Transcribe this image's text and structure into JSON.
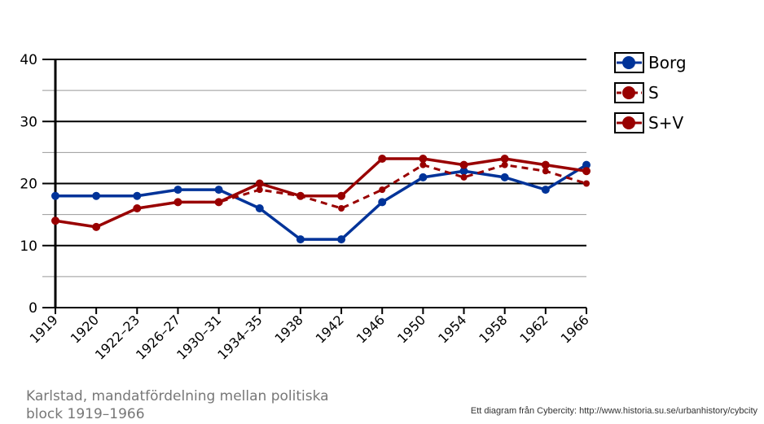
{
  "chart_data": {
    "type": "line",
    "title": "",
    "xlabel": "",
    "ylabel": "",
    "ylim": [
      0,
      40
    ],
    "yticks": [
      0,
      10,
      20,
      30,
      40
    ],
    "grid": true,
    "legend_position": "right",
    "categories": [
      "1919",
      "1920",
      "1922–23",
      "1926–27",
      "1930–31",
      "1934–35",
      "1938",
      "1942",
      "1946",
      "1950",
      "1954",
      "1958",
      "1962",
      "1966"
    ],
    "series": [
      {
        "name": "Borg",
        "color": "#003399",
        "dashed": false,
        "values": [
          18,
          18,
          18,
          19,
          19,
          16,
          11,
          11,
          17,
          21,
          22,
          21,
          19,
          23
        ]
      },
      {
        "name": "S",
        "color": "#990000",
        "dashed": true,
        "values": [
          14,
          13,
          16,
          17,
          17,
          19,
          18,
          16,
          19,
          23,
          21,
          23,
          22,
          20
        ]
      },
      {
        "name": "S+V",
        "color": "#990000",
        "dashed": false,
        "values": [
          14,
          13,
          16,
          17,
          17,
          20,
          18,
          18,
          24,
          24,
          23,
          24,
          23,
          22
        ]
      }
    ]
  },
  "caption": "Karlstad, mandatfördelning mellan politiska block 1919–1966",
  "credit": "Ett diagram från Cybercity: http://www.historia.su.se/urbanhistory/cybcity"
}
